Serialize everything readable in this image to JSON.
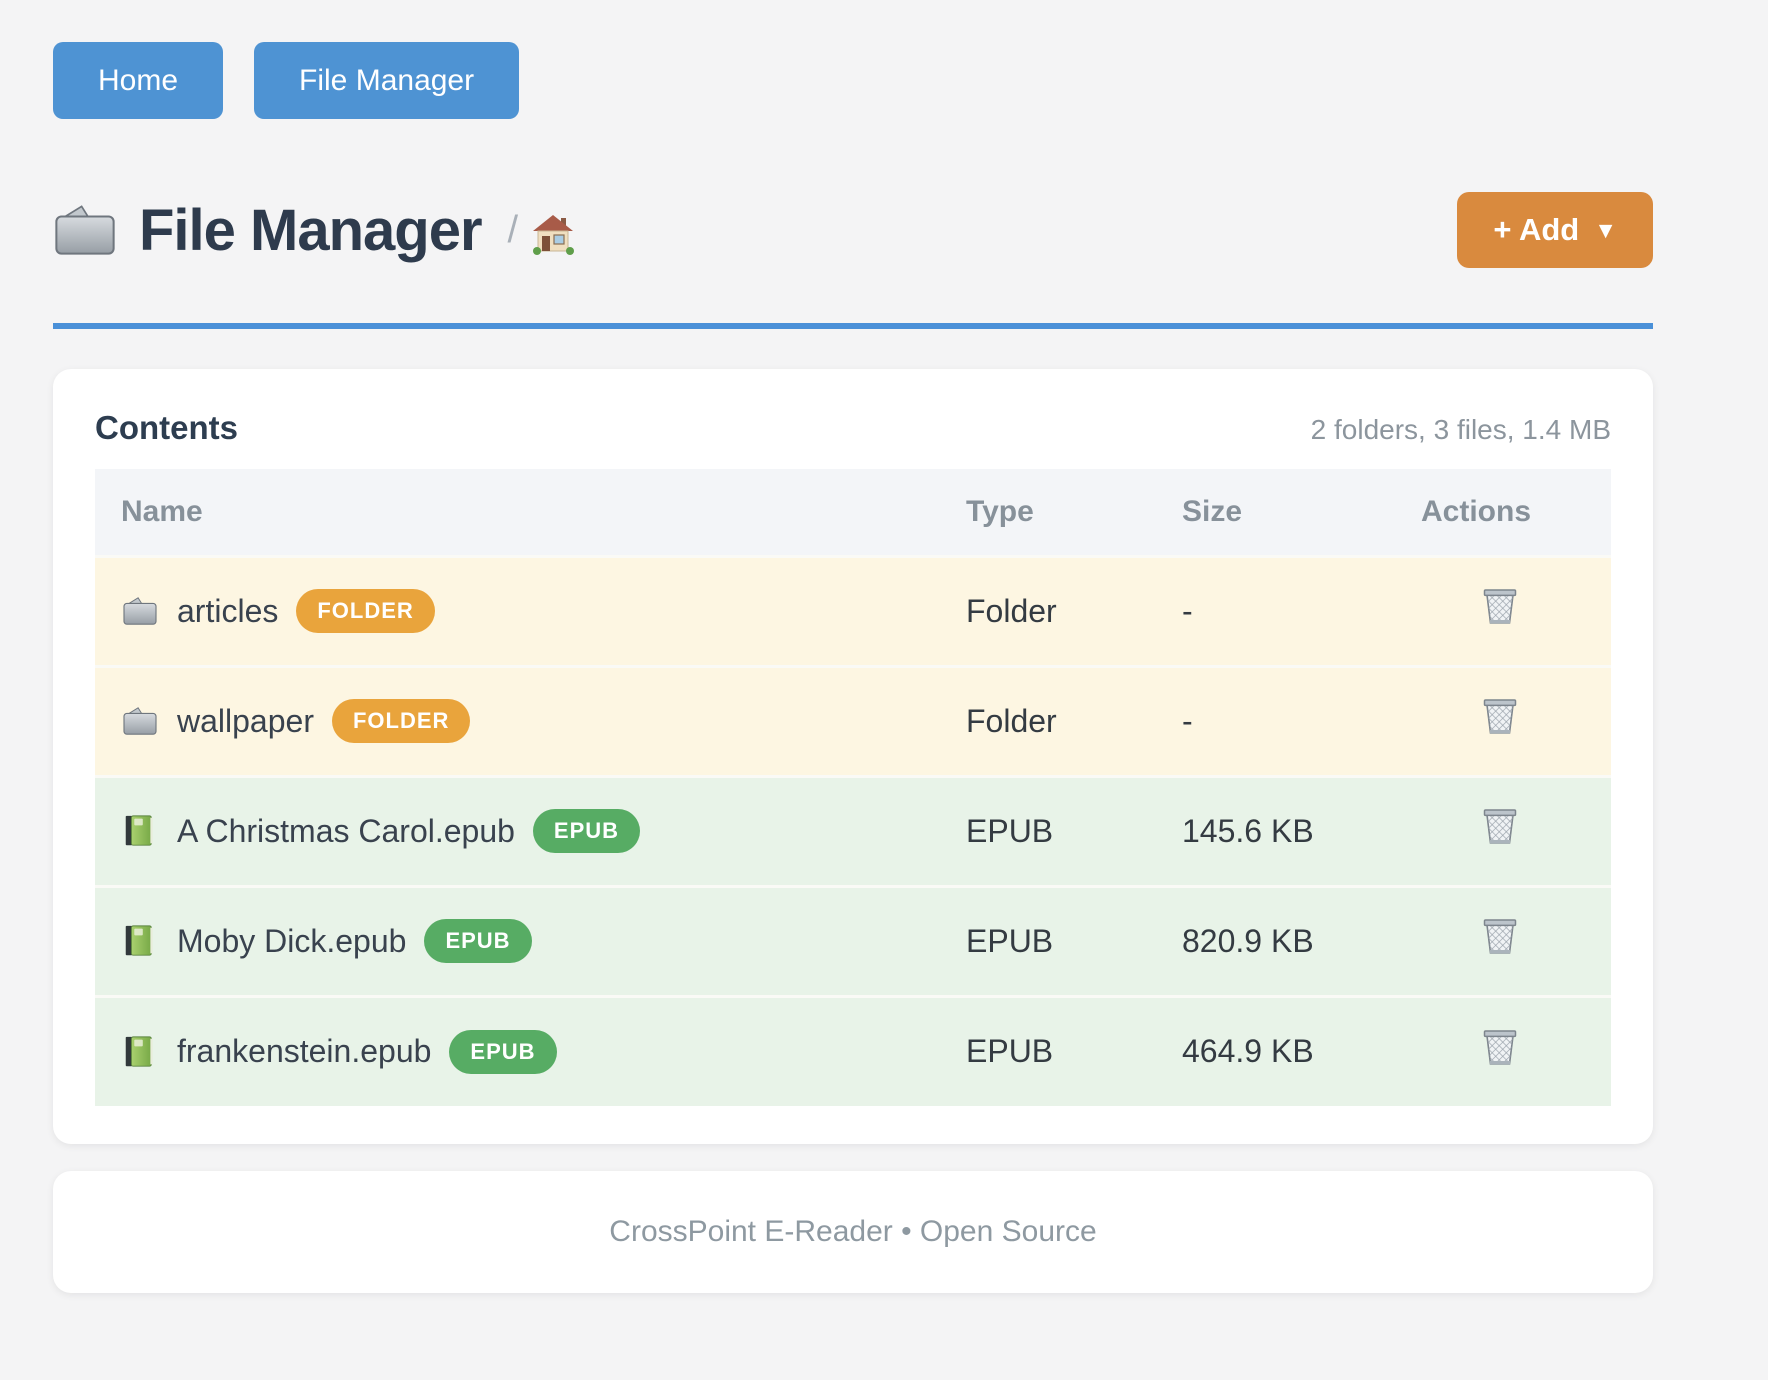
{
  "nav": {
    "buttons": [
      {
        "label": "Home"
      },
      {
        "label": "File Manager"
      }
    ]
  },
  "header": {
    "title": "File Manager",
    "breadcrumb_separator": "/",
    "add_button": {
      "label": "+ Add",
      "caret": "▼"
    }
  },
  "contents": {
    "title": "Contents",
    "summary": "2 folders, 3 files, 1.4 MB",
    "table": {
      "columns": [
        "Name",
        "Type",
        "Size",
        "Actions"
      ],
      "rows": [
        {
          "name": "articles",
          "kind": "folder",
          "badge": "FOLDER",
          "type": "Folder",
          "size": "-"
        },
        {
          "name": "wallpaper",
          "kind": "folder",
          "badge": "FOLDER",
          "type": "Folder",
          "size": "-"
        },
        {
          "name": "A Christmas Carol.epub",
          "kind": "epub",
          "badge": "EPUB",
          "type": "EPUB",
          "size": "145.6 KB"
        },
        {
          "name": "Moby Dick.epub",
          "kind": "epub",
          "badge": "EPUB",
          "type": "EPUB",
          "size": "820.9 KB"
        },
        {
          "name": "frankenstein.epub",
          "kind": "epub",
          "badge": "EPUB",
          "type": "EPUB",
          "size": "464.9 KB"
        }
      ]
    }
  },
  "footer": {
    "text": "CrossPoint E-Reader • Open Source"
  },
  "icons": {
    "title": "folder-icon",
    "breadcrumb": "home-icon",
    "row_folder": "folder-icon",
    "row_epub": "book-icon",
    "actions": "trash-icon"
  },
  "colors": {
    "nav_button_blue": "#4e93d3",
    "divider_blue": "#4a90d8",
    "add_orange": "#d98a3e",
    "folder_badge_orange": "#e9a43c",
    "epub_badge_green": "#57ac64",
    "folder_row_bg": "#fdf6e2",
    "epub_row_bg": "#e8f3e8"
  }
}
